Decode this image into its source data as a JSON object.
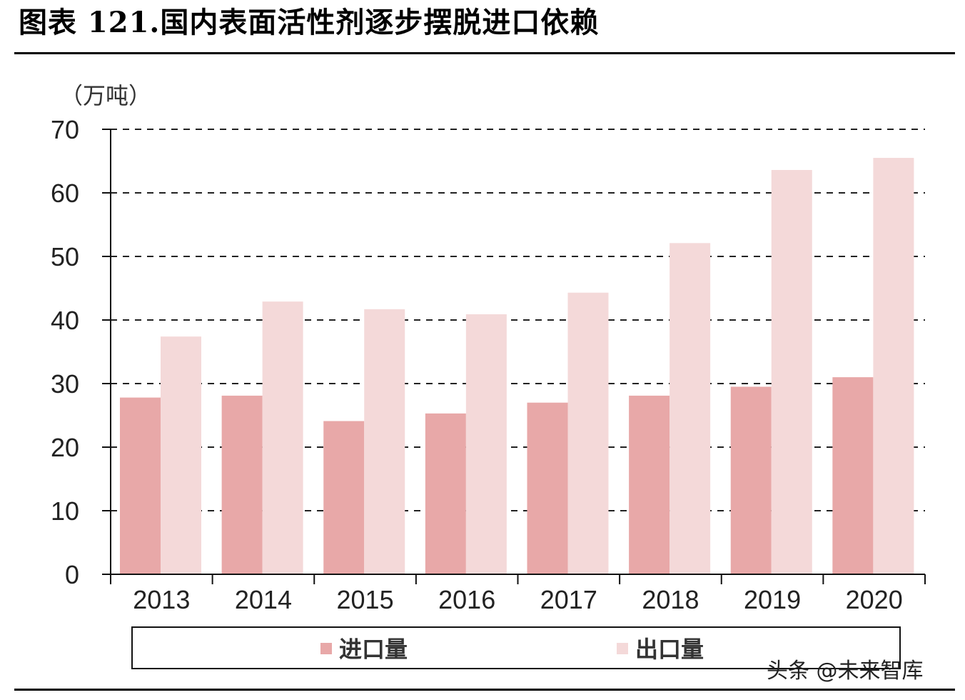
{
  "title": "图表 121.国内表面活性剂逐步摆脱进口依赖",
  "watermark": "头条 @未来智库",
  "chart_data": {
    "type": "bar",
    "unit_label": "（万吨）",
    "categories": [
      "2013",
      "2014",
      "2015",
      "2016",
      "2017",
      "2018",
      "2019",
      "2020"
    ],
    "series": [
      {
        "name": "进口量",
        "color": "#e8a8a8",
        "values": [
          27.8,
          28.1,
          24.1,
          25.3,
          27.0,
          28.1,
          29.5,
          31.0
        ]
      },
      {
        "name": "出口量",
        "color": "#f4d9d9",
        "values": [
          37.4,
          42.9,
          41.7,
          40.9,
          44.3,
          52.1,
          63.6,
          65.5
        ]
      }
    ],
    "ylim": [
      0,
      70
    ],
    "yticks": [
      0,
      10,
      20,
      30,
      40,
      50,
      60,
      70
    ],
    "grid": true,
    "grid_style": "dashed",
    "legend_position": "bottom"
  }
}
